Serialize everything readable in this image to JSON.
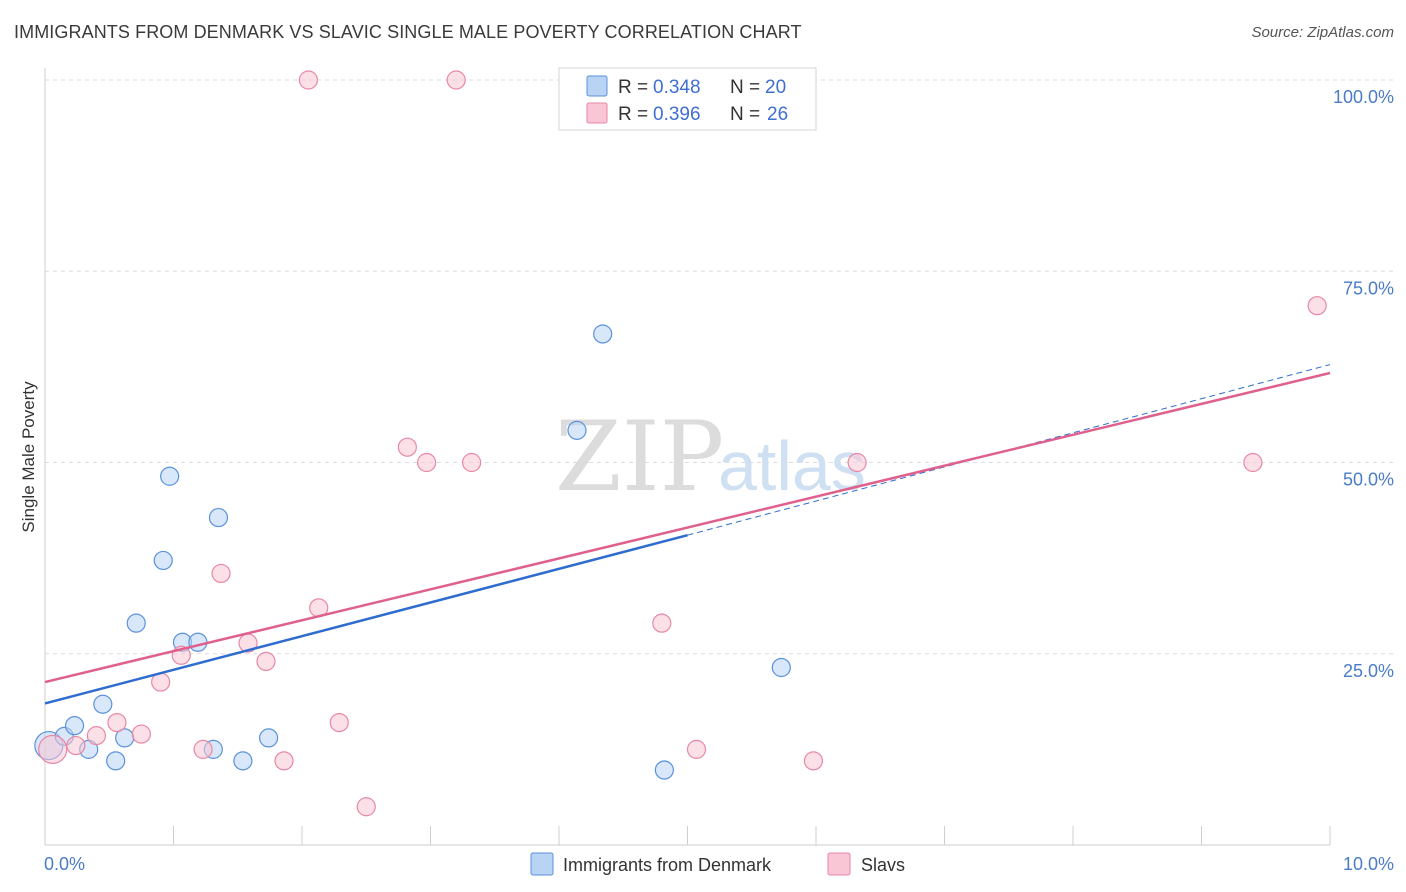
{
  "title": "IMMIGRANTS FROM DENMARK VS SLAVIC SINGLE MALE POVERTY CORRELATION CHART",
  "source": "Source: ZipAtlas.com",
  "watermark": {
    "zip": "ZIP",
    "atlas": "atlas"
  },
  "colors": {
    "blue_fill": "#b8d3f4",
    "blue_stroke": "#5b92dc",
    "blue_line": "#2f6ccf",
    "pink_fill": "#f9c6d6",
    "pink_stroke": "#e887a6",
    "pink_line": "#e0608d",
    "grid": "#dcdcdc",
    "tick_text": "#4a7cc7"
  },
  "chart_data": {
    "type": "scatter",
    "xlabel": "",
    "ylabel": "Single Male Poverty",
    "xlim": [
      0,
      10
    ],
    "ylim": [
      0,
      100
    ],
    "x_tick_labels": {
      "left": "0.0%",
      "right": "10.0%"
    },
    "y_ticks": [
      {
        "value": 25,
        "label": "25.0%"
      },
      {
        "value": 50,
        "label": "50.0%"
      },
      {
        "value": 75,
        "label": "75.0%"
      },
      {
        "value": 100,
        "label": "100.0%"
      }
    ],
    "legend": [
      {
        "r_label": "R = ",
        "r": "0.348",
        "n_label": "N = ",
        "n": "20"
      },
      {
        "r_label": "R = ",
        "r": "0.396",
        "n_label": "N = ",
        "n": "26"
      }
    ],
    "series": [
      {
        "name": "Immigrants from Denmark",
        "color": "blue",
        "points": [
          [
            0.03,
            13.0,
            14
          ],
          [
            0.15,
            14.2,
            9
          ],
          [
            0.23,
            15.6,
            9
          ],
          [
            0.34,
            12.5,
            9
          ],
          [
            0.45,
            18.4,
            9
          ],
          [
            0.55,
            11.0,
            9
          ],
          [
            0.62,
            14.0,
            9
          ],
          [
            0.71,
            29.0,
            9
          ],
          [
            0.92,
            37.2,
            9
          ],
          [
            0.97,
            48.2,
            9
          ],
          [
            1.07,
            26.5,
            9
          ],
          [
            1.19,
            26.5,
            9
          ],
          [
            1.31,
            12.5,
            9
          ],
          [
            1.35,
            42.8,
            9
          ],
          [
            1.54,
            11.0,
            9
          ],
          [
            1.74,
            14.0,
            9
          ],
          [
            4.14,
            54.2,
            9
          ],
          [
            4.34,
            66.8,
            9
          ],
          [
            4.82,
            9.8,
            9
          ],
          [
            5.73,
            23.2,
            9
          ]
        ],
        "trend": {
          "x0": 0,
          "y0": 18.5,
          "x1": 5.0,
          "y1": 40.5,
          "dash_x1": 10.0,
          "dash_y1": 62.8
        }
      },
      {
        "name": "Slavs",
        "color": "pink",
        "points": [
          [
            0.06,
            12.5,
            14
          ],
          [
            0.24,
            13.0,
            9
          ],
          [
            0.4,
            14.3,
            9
          ],
          [
            0.56,
            16.0,
            9
          ],
          [
            0.75,
            14.5,
            9
          ],
          [
            0.9,
            21.3,
            9
          ],
          [
            1.06,
            24.8,
            9
          ],
          [
            1.23,
            12.5,
            9
          ],
          [
            1.37,
            35.5,
            9
          ],
          [
            1.58,
            26.4,
            9
          ],
          [
            1.72,
            24.0,
            9
          ],
          [
            1.86,
            11.0,
            9
          ],
          [
            2.05,
            100.0,
            9
          ],
          [
            2.13,
            31.0,
            9
          ],
          [
            2.29,
            16.0,
            9
          ],
          [
            2.5,
            5.0,
            9
          ],
          [
            2.82,
            52.0,
            9
          ],
          [
            2.97,
            50.0,
            9
          ],
          [
            3.2,
            100.0,
            9
          ],
          [
            3.32,
            50.0,
            9
          ],
          [
            4.8,
            29.0,
            9
          ],
          [
            5.07,
            12.5,
            9
          ],
          [
            5.98,
            11.0,
            9
          ],
          [
            6.32,
            50.0,
            9
          ],
          [
            9.4,
            50.0,
            9
          ],
          [
            9.9,
            70.5,
            9
          ]
        ],
        "trend": {
          "x0": 0,
          "y0": 21.3,
          "x1": 10.0,
          "y1": 61.7
        }
      }
    ]
  }
}
